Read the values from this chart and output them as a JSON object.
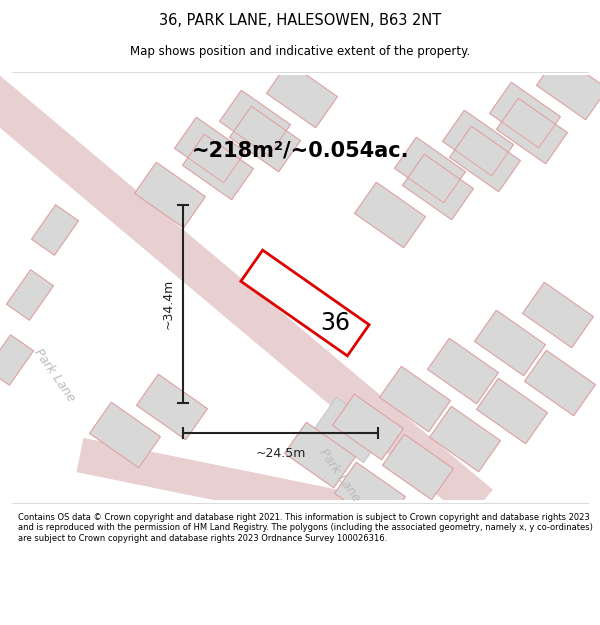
{
  "title_line1": "36, PARK LANE, HALESOWEN, B63 2NT",
  "title_line2": "Map shows position and indicative extent of the property.",
  "area_text": "~218m²/~0.054ac.",
  "dim_vertical": "~34.4m",
  "dim_horizontal": "~24.5m",
  "property_number": "36",
  "road_label_1": "Park Lane",
  "road_label_2": "Park Lane",
  "footer_text": "Contains OS data © Crown copyright and database right 2021. This information is subject to Crown copyright and database rights 2023 and is reproduced with the permission of HM Land Registry. The polygons (including the associated geometry, namely x, y co-ordinates) are subject to Crown copyright and database rights 2023 Ordnance Survey 100026316.",
  "bg_color": "#ffffff",
  "map_bg_color": "#f5f0f0",
  "road_color": "#e8d0d0",
  "building_fill": "#d8d8d8",
  "building_edge": "#bbbbbb",
  "highlight_fill": "#ffffff",
  "highlight_edge": "#dd0000",
  "dim_color": "#222222",
  "text_color": "#000000",
  "road_text_color": "#bbbbbb",
  "pink_outline": "#e8a0a0"
}
